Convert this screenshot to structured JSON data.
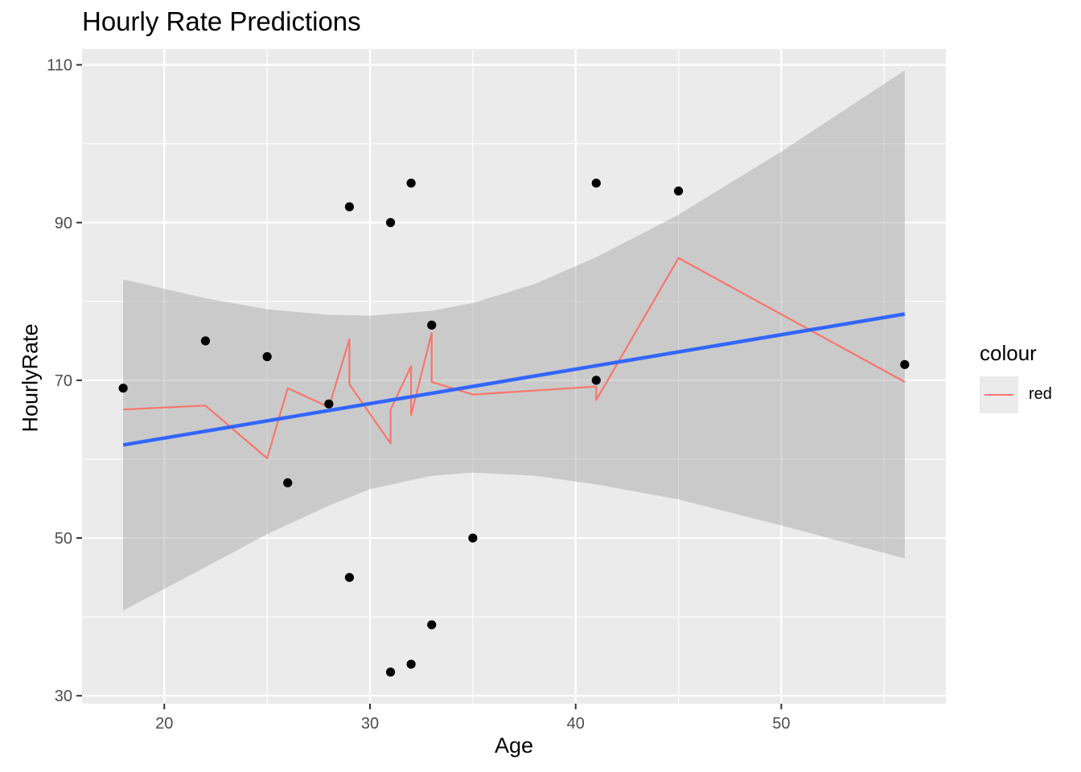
{
  "chart_data": {
    "type": "scatter",
    "title": "Hourly Rate Predictions",
    "xlabel": "Age",
    "ylabel": "HourlyRate",
    "xlim": [
      16,
      58
    ],
    "ylim": [
      29,
      112
    ],
    "x_ticks": [
      20,
      30,
      40,
      50
    ],
    "y_ticks": [
      30,
      50,
      70,
      90,
      110
    ],
    "grid": true,
    "legend": {
      "title": "colour",
      "position": "right",
      "entries": [
        {
          "label": "red",
          "color": "#f8766d"
        }
      ]
    },
    "points": [
      {
        "x": 18,
        "y": 69
      },
      {
        "x": 22,
        "y": 75
      },
      {
        "x": 25,
        "y": 73
      },
      {
        "x": 26,
        "y": 57
      },
      {
        "x": 28,
        "y": 67
      },
      {
        "x": 29,
        "y": 92
      },
      {
        "x": 29,
        "y": 45
      },
      {
        "x": 31,
        "y": 90
      },
      {
        "x": 31,
        "y": 33
      },
      {
        "x": 32,
        "y": 95
      },
      {
        "x": 32,
        "y": 34
      },
      {
        "x": 33,
        "y": 77
      },
      {
        "x": 33,
        "y": 39
      },
      {
        "x": 35,
        "y": 50
      },
      {
        "x": 41,
        "y": 95
      },
      {
        "x": 41,
        "y": 70
      },
      {
        "x": 45,
        "y": 94
      },
      {
        "x": 56,
        "y": 72
      }
    ],
    "prediction_line": {
      "label": "red",
      "color": "#f8766d",
      "points": [
        {
          "x": 18,
          "y": 66.3
        },
        {
          "x": 22,
          "y": 66.8
        },
        {
          "x": 25,
          "y": 60.1
        },
        {
          "x": 26,
          "y": 69.0
        },
        {
          "x": 28,
          "y": 66.6
        },
        {
          "x": 29,
          "y": 75.2
        },
        {
          "x": 29,
          "y": 69.5
        },
        {
          "x": 31,
          "y": 62.0
        },
        {
          "x": 31,
          "y": 66.3
        },
        {
          "x": 32,
          "y": 71.8
        },
        {
          "x": 32,
          "y": 65.6
        },
        {
          "x": 33,
          "y": 76.0
        },
        {
          "x": 33,
          "y": 69.8
        },
        {
          "x": 35,
          "y": 68.2
        },
        {
          "x": 41,
          "y": 69.2
        },
        {
          "x": 41,
          "y": 67.5
        },
        {
          "x": 45,
          "y": 85.5
        },
        {
          "x": 56,
          "y": 69.8
        }
      ]
    },
    "trend_line": {
      "method": "linear",
      "color": "#3366ff",
      "points": [
        {
          "x": 18,
          "y": 61.8
        },
        {
          "x": 56,
          "y": 78.4
        }
      ],
      "confidence_band": {
        "x": [
          18,
          22,
          25,
          28,
          30,
          33,
          35,
          38,
          41,
          45,
          50,
          56
        ],
        "upper": [
          82.8,
          80.4,
          79.0,
          78.3,
          78.2,
          78.8,
          79.8,
          82.2,
          85.6,
          91.0,
          99.0,
          109.3
        ],
        "lower": [
          40.8,
          46.3,
          50.5,
          54.1,
          56.2,
          57.9,
          58.3,
          57.9,
          56.8,
          54.9,
          51.6,
          47.4
        ]
      }
    }
  }
}
